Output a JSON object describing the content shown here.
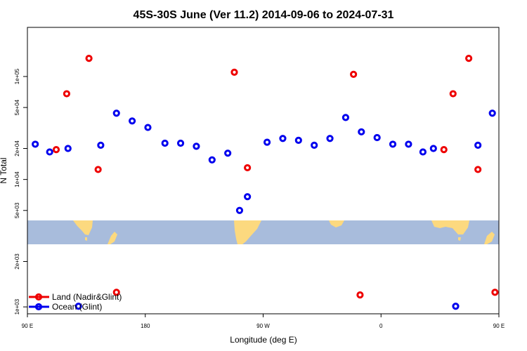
{
  "chart_data": {
    "type": "scatter",
    "title": "45S-30S June (Ver 11.2)   2014-09-06 to 2024-07-31",
    "xlabel": "Longitude (deg E)",
    "ylabel": "N Total",
    "xlim": [
      90,
      450
    ],
    "x_ticks": [
      {
        "value": 90,
        "label": "90 E"
      },
      {
        "value": 180,
        "label": "180"
      },
      {
        "value": 270,
        "label": "90 W"
      },
      {
        "value": 360,
        "label": "0"
      },
      {
        "value": 450,
        "label": "90 E"
      }
    ],
    "upper_panel": {
      "scale": "log",
      "ylim": [
        4000,
        300000
      ],
      "y_ticks": [
        {
          "value": 5000,
          "label": "5e+03"
        },
        {
          "value": 10000,
          "label": "1e+04"
        },
        {
          "value": 20000,
          "label": "2e+04"
        },
        {
          "value": 50000,
          "label": "5e+04"
        },
        {
          "value": 100000,
          "label": "1e+05"
        }
      ]
    },
    "lower_panel": {
      "scale": "log",
      "ylim": [
        900,
        2600
      ],
      "y_ticks": [
        {
          "value": 1000,
          "label": "1e+03"
        },
        {
          "value": 2000,
          "label": "2e+03"
        }
      ]
    },
    "map_strip": {
      "ocean_color": "#a8bcdc",
      "land_color": "#fcd97f"
    },
    "series": [
      {
        "name": "Land (Nadir&Glint)",
        "color": "#ee0000",
        "points": [
          {
            "x": 112,
            "y": 19500,
            "panel": "upper"
          },
          {
            "x": 120,
            "y": 68000,
            "panel": "upper"
          },
          {
            "x": 137,
            "y": 150000,
            "panel": "upper"
          },
          {
            "x": 144,
            "y": 12500,
            "panel": "upper"
          },
          {
            "x": 158,
            "y": 1250,
            "panel": "lower"
          },
          {
            "x": 248,
            "y": 110000,
            "panel": "upper"
          },
          {
            "x": 258,
            "y": 13000,
            "panel": "upper"
          },
          {
            "x": 339,
            "y": 105000,
            "panel": "upper"
          },
          {
            "x": 344,
            "y": 1200,
            "panel": "lower"
          },
          {
            "x": 408,
            "y": 19500,
            "panel": "upper"
          },
          {
            "x": 415,
            "y": 68000,
            "panel": "upper"
          },
          {
            "x": 427,
            "y": 150000,
            "panel": "upper"
          },
          {
            "x": 434,
            "y": 12500,
            "panel": "upper"
          },
          {
            "x": 447,
            "y": 1250,
            "panel": "lower"
          }
        ]
      },
      {
        "name": "Ocean (Glint)",
        "color": "#0000ee",
        "points": [
          {
            "x": 96,
            "y": 22000,
            "panel": "upper"
          },
          {
            "x": 107,
            "y": 18500,
            "panel": "upper"
          },
          {
            "x": 121,
            "y": 20000,
            "panel": "upper"
          },
          {
            "x": 129,
            "y": 1010,
            "panel": "lower"
          },
          {
            "x": 146,
            "y": 21500,
            "panel": "upper"
          },
          {
            "x": 158,
            "y": 44000,
            "panel": "upper"
          },
          {
            "x": 170,
            "y": 37000,
            "panel": "upper"
          },
          {
            "x": 182,
            "y": 32000,
            "panel": "upper"
          },
          {
            "x": 195,
            "y": 22500,
            "panel": "upper"
          },
          {
            "x": 207,
            "y": 22500,
            "panel": "upper"
          },
          {
            "x": 219,
            "y": 21000,
            "panel": "upper"
          },
          {
            "x": 231,
            "y": 15500,
            "panel": "upper"
          },
          {
            "x": 243,
            "y": 18000,
            "panel": "upper"
          },
          {
            "x": 252,
            "y": 5000,
            "panel": "upper"
          },
          {
            "x": 258,
            "y": 6800,
            "panel": "upper"
          },
          {
            "x": 273,
            "y": 23000,
            "panel": "upper"
          },
          {
            "x": 285,
            "y": 25000,
            "panel": "upper"
          },
          {
            "x": 297,
            "y": 24000,
            "panel": "upper"
          },
          {
            "x": 309,
            "y": 21500,
            "panel": "upper"
          },
          {
            "x": 321,
            "y": 25000,
            "panel": "upper"
          },
          {
            "x": 333,
            "y": 40000,
            "panel": "upper"
          },
          {
            "x": 345,
            "y": 29000,
            "panel": "upper"
          },
          {
            "x": 357,
            "y": 25500,
            "panel": "upper"
          },
          {
            "x": 369,
            "y": 22000,
            "panel": "upper"
          },
          {
            "x": 381,
            "y": 22000,
            "panel": "upper"
          },
          {
            "x": 392,
            "y": 18500,
            "panel": "upper"
          },
          {
            "x": 400,
            "y": 20000,
            "panel": "upper"
          },
          {
            "x": 417,
            "y": 1010,
            "panel": "lower"
          },
          {
            "x": 434,
            "y": 21500,
            "panel": "upper"
          },
          {
            "x": 445,
            "y": 44000,
            "panel": "upper"
          }
        ]
      }
    ]
  }
}
